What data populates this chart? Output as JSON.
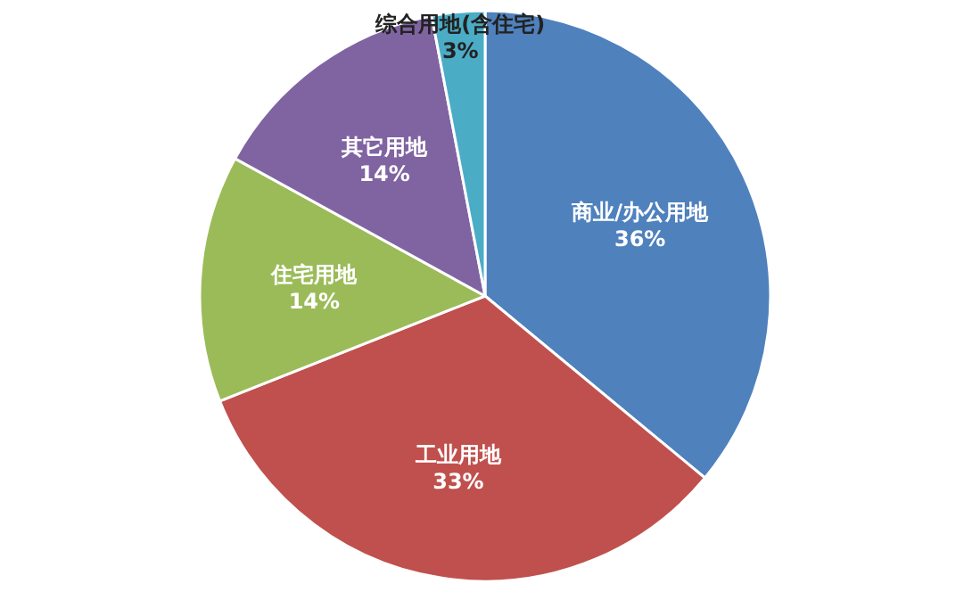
{
  "chart_data": {
    "type": "pie",
    "categories": [
      "商业/办公用地",
      "工业用地",
      "住宅用地",
      "其它用地",
      "综合用地(含住宅)"
    ],
    "values": [
      36,
      33,
      14,
      14,
      3
    ],
    "colors": [
      "#4f81bd",
      "#c0504d",
      "#9bbb59",
      "#8064a2",
      "#4bacc6"
    ],
    "value_labels": [
      "36%",
      "33%",
      "14%",
      "14%",
      "3%"
    ]
  }
}
